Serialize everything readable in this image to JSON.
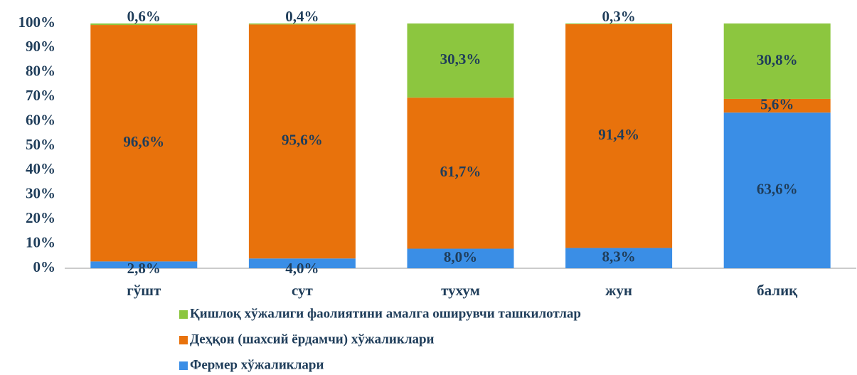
{
  "chart_data": {
    "type": "stacked_bar",
    "categories": [
      "гўшт",
      "сут",
      "тухум",
      "жун",
      "балиқ"
    ],
    "series": [
      {
        "name": "Фермер хўжаликлари",
        "color": "#3a8ee6",
        "values": [
          2.8,
          4.0,
          8.0,
          8.3,
          63.6
        ],
        "value_labels": [
          "2,8%",
          "4,0%",
          "8,0%",
          "8,3%",
          "63,6%"
        ]
      },
      {
        "name": "Деҳқон (шахсий ёрдамчи) хўжаликлари",
        "color": "#e8720c",
        "values": [
          96.6,
          95.6,
          61.7,
          91.4,
          5.6
        ],
        "value_labels": [
          "96,6%",
          "95,6%",
          "61,7%",
          "91,4%",
          "5,6%"
        ]
      },
      {
        "name": "Қишлоқ хўжалиги фаолиятини амалга оширувчи ташкилотлар",
        "color": "#8cc63f",
        "values": [
          0.6,
          0.4,
          30.3,
          0.3,
          30.8
        ],
        "value_labels": [
          "0,6%",
          "0,4%",
          "30,3%",
          "0,3%",
          "30,8%"
        ]
      }
    ],
    "ylim": [
      0,
      100
    ],
    "yticks": [
      {
        "value": 0,
        "label": "0%"
      },
      {
        "value": 10,
        "label": "10%"
      },
      {
        "value": 20,
        "label": "20%"
      },
      {
        "value": 30,
        "label": "30%"
      },
      {
        "value": 40,
        "label": "40%"
      },
      {
        "value": 50,
        "label": "50%"
      },
      {
        "value": 60,
        "label": "60%"
      },
      {
        "value": 70,
        "label": "70%"
      },
      {
        "value": 80,
        "label": "80%"
      },
      {
        "value": 90,
        "label": "90%"
      },
      {
        "value": 100,
        "label": "100%"
      }
    ],
    "grid": false,
    "legend": "bottom"
  }
}
